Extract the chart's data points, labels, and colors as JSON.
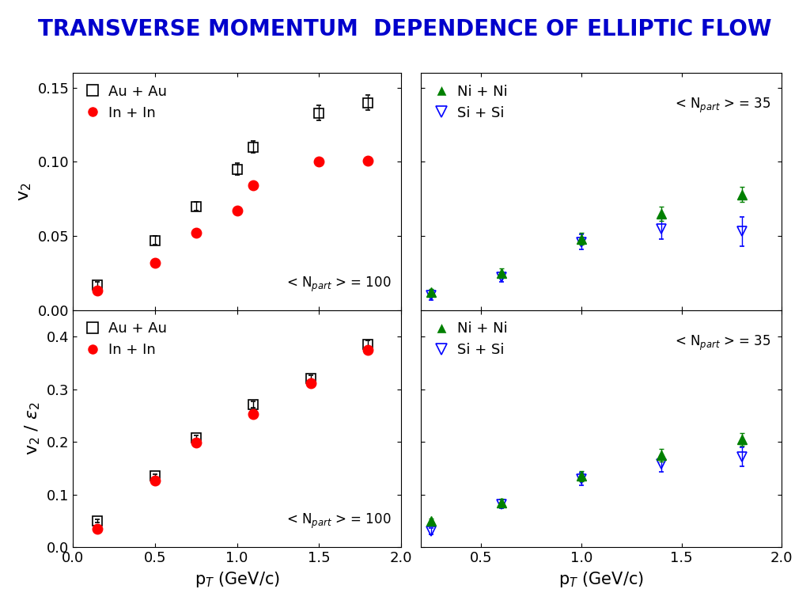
{
  "title": "TRANSVERSE MOMENTUM  DEPENDENCE OF ELLIPTIC FLOW",
  "title_color": "#0000CC",
  "title_fontsize": 20,
  "top_left": {
    "AuAu_pt": [
      0.15,
      0.5,
      0.75,
      1.0,
      1.1,
      1.5,
      1.8
    ],
    "AuAu_v2": [
      0.017,
      0.047,
      0.07,
      0.095,
      0.11,
      0.133,
      0.14
    ],
    "AuAu_yerr": [
      0.002,
      0.003,
      0.003,
      0.004,
      0.004,
      0.005,
      0.005
    ],
    "InIn_pt": [
      0.15,
      0.5,
      0.75,
      1.0,
      1.1,
      1.5,
      1.8
    ],
    "InIn_v2": [
      0.013,
      0.032,
      0.052,
      0.067,
      0.084,
      0.1,
      0.101
    ],
    "ylabel": "v$_2$",
    "ylim": [
      0.0,
      0.16
    ],
    "yticks": [
      0.0,
      0.05,
      0.1,
      0.15
    ],
    "npart_label": "< N$_{part}$ > = 100",
    "xlim": [
      0.0,
      2.0
    ],
    "xticks": [
      0.0,
      0.5,
      1.0,
      1.5,
      2.0
    ]
  },
  "bottom_left": {
    "AuAu_pt": [
      0.15,
      0.5,
      0.75,
      1.1,
      1.45,
      1.8
    ],
    "AuAu_v2e2": [
      0.05,
      0.135,
      0.207,
      0.27,
      0.32,
      0.385
    ],
    "AuAu_yerr": [
      0.003,
      0.004,
      0.005,
      0.006,
      0.007,
      0.007
    ],
    "InIn_pt": [
      0.15,
      0.5,
      0.75,
      1.1,
      1.45,
      1.8
    ],
    "InIn_v2e2": [
      0.035,
      0.127,
      0.198,
      0.252,
      0.312,
      0.375
    ],
    "ylabel": "v$_2$ / $\\varepsilon_2$",
    "ylim": [
      0.0,
      0.45
    ],
    "yticks": [
      0.0,
      0.1,
      0.2,
      0.3,
      0.4
    ],
    "npart_label": "< N$_{part}$ > = 100",
    "xlim": [
      0.0,
      2.0
    ],
    "xticks": [
      0.0,
      0.5,
      1.0,
      1.5,
      2.0
    ],
    "xlabel": "p$_T$ (GeV/c)"
  },
  "top_right": {
    "NiNi_pt": [
      0.25,
      0.6,
      1.0,
      1.4,
      1.8
    ],
    "NiNi_v2": [
      0.012,
      0.025,
      0.048,
      0.065,
      0.078
    ],
    "NiNi_yerr": [
      0.002,
      0.003,
      0.004,
      0.005,
      0.005
    ],
    "SiSi_pt": [
      0.25,
      0.6,
      1.0,
      1.4,
      1.8
    ],
    "SiSi_v2": [
      0.01,
      0.022,
      0.046,
      0.055,
      0.053
    ],
    "SiSi_yerr": [
      0.003,
      0.003,
      0.005,
      0.007,
      0.01
    ],
    "ylim": [
      0.0,
      0.16
    ],
    "yticks": [
      0.0,
      0.05,
      0.1,
      0.15
    ],
    "npart_label": "< N$_{part}$ > = 35",
    "xlim": [
      0.2,
      2.0
    ],
    "xticks": [
      0.5,
      1.0,
      1.5,
      2.0
    ]
  },
  "bottom_right": {
    "NiNi_pt": [
      0.25,
      0.6,
      1.0,
      1.4,
      1.8
    ],
    "NiNi_v2e2": [
      0.05,
      0.085,
      0.135,
      0.175,
      0.205
    ],
    "NiNi_yerr": [
      0.005,
      0.007,
      0.01,
      0.012,
      0.012
    ],
    "SiSi_pt": [
      0.25,
      0.6,
      1.0,
      1.4,
      1.8
    ],
    "SiSi_v2e2": [
      0.03,
      0.082,
      0.13,
      0.158,
      0.172
    ],
    "SiSi_yerr": [
      0.006,
      0.008,
      0.012,
      0.015,
      0.018
    ],
    "ylim": [
      0.0,
      0.45
    ],
    "yticks": [
      0.0,
      0.1,
      0.2,
      0.3,
      0.4
    ],
    "npart_label": "< N$_{part}$ > = 35",
    "xlim": [
      0.2,
      2.0
    ],
    "xticks": [
      0.5,
      1.0,
      1.5,
      2.0
    ],
    "xlabel": "p$_T$ (GeV/c)"
  },
  "AuAu_color": "black",
  "InIn_color": "red",
  "NiNi_color": "green",
  "SiSi_color": "blue",
  "marker_AuAu": "s",
  "marker_InIn": "o",
  "marker_NiNi": "^",
  "marker_SiSi": "v",
  "markersize_large": 9,
  "elinewidth": 1.0,
  "capsize": 2
}
